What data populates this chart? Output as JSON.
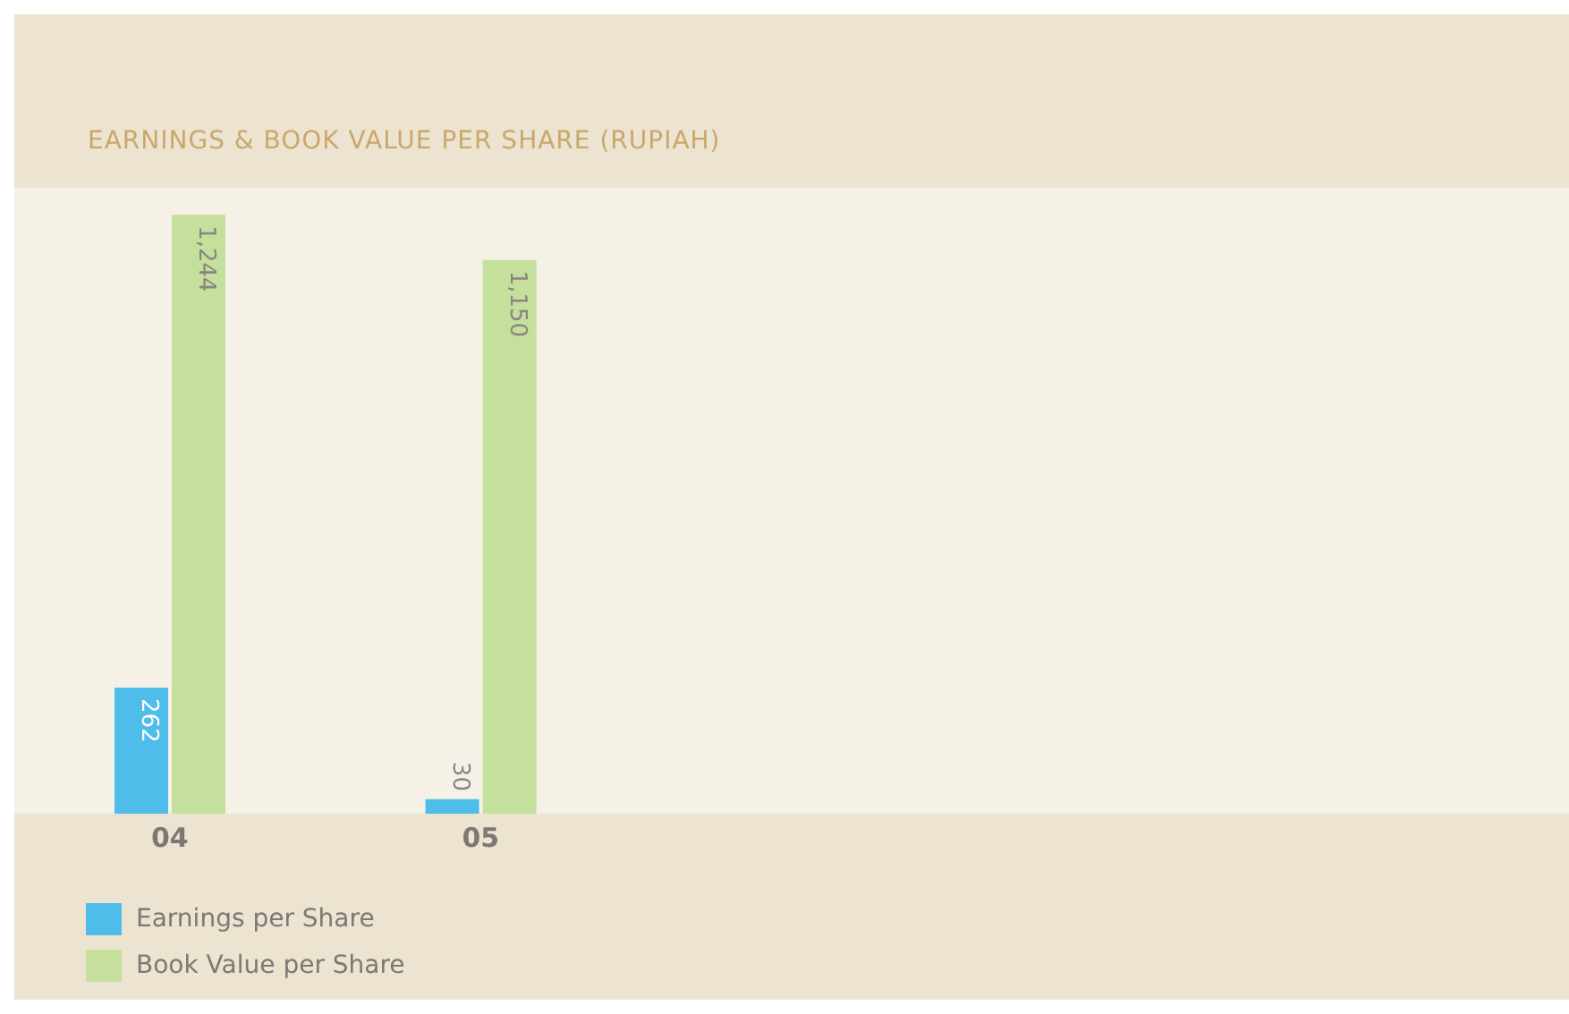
{
  "chart_data": {
    "type": "bar",
    "title": "EARNINGS & BOOK VALUE PER SHARE (RUPIAH)",
    "categories": [
      "04",
      "05",
      null,
      null,
      null
    ],
    "series": [
      {
        "name": "Earnings per Share",
        "color": "#4fbdea",
        "values": [
          262,
          30,
          null,
          null,
          null
        ],
        "value_labels": [
          "262",
          "30",
          null,
          null,
          null
        ]
      },
      {
        "name": "Book Value per Share",
        "color": "#c5df9c",
        "values": [
          1244,
          1150,
          null,
          null,
          null
        ],
        "value_labels": [
          "1,244",
          "1,150",
          null,
          null,
          null
        ]
      }
    ],
    "ylim": [
      0,
      1300
    ],
    "tick_labels": "x",
    "legend": "bottom left"
  }
}
